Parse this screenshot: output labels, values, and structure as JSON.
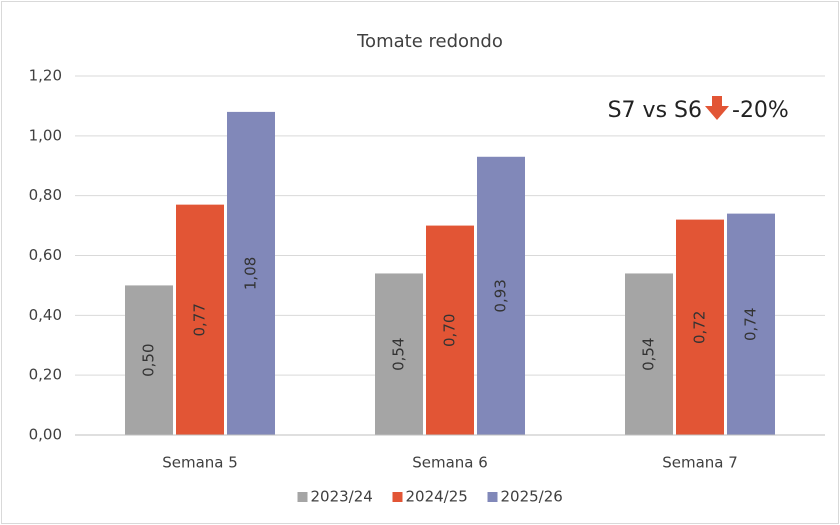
{
  "chart_data": {
    "type": "bar",
    "title": "Tomate redondo",
    "categories": [
      "Semana 5",
      "Semana 6",
      "Semana 7"
    ],
    "series": [
      {
        "name": "2023/24",
        "color": "#a5a5a5",
        "values": [
          0.5,
          0.54,
          0.54
        ],
        "value_labels": [
          "0,50",
          "0,54",
          "0,54"
        ]
      },
      {
        "name": "2024/25",
        "color": "#e25535",
        "values": [
          0.77,
          0.7,
          0.72
        ],
        "value_labels": [
          "0,77",
          "0,70",
          "0,72"
        ]
      },
      {
        "name": "2025/26",
        "color": "#8188b9",
        "values": [
          1.08,
          0.93,
          0.74
        ],
        "value_labels": [
          "1,08",
          "0,93",
          "0,74"
        ]
      }
    ],
    "ylim": [
      0,
      1.2
    ],
    "yticks": [
      {
        "value": 0,
        "label": "0,00"
      },
      {
        "value": 0.2,
        "label": "0,20"
      },
      {
        "value": 0.4,
        "label": "0,40"
      },
      {
        "value": 0.6,
        "label": "0,60"
      },
      {
        "value": 0.8,
        "label": "0,80"
      },
      {
        "value": 1.0,
        "label": "1,00"
      },
      {
        "value": 1.2,
        "label": "1,20"
      }
    ],
    "grid": true,
    "legend": "bottom",
    "annotations": [
      "S7 vs S6",
      "-20%"
    ]
  }
}
